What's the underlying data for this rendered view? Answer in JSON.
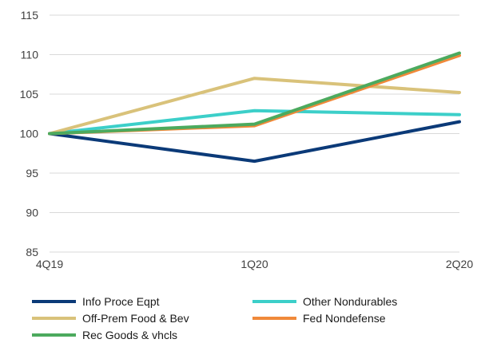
{
  "chart_data": {
    "type": "line",
    "title": "",
    "xlabel": "",
    "ylabel": "",
    "categories": [
      "4Q19",
      "1Q20",
      "2Q20"
    ],
    "ylim": [
      85,
      115
    ],
    "yticks": [
      85,
      90,
      95,
      100,
      105,
      110,
      115
    ],
    "grid": "horizontal",
    "legend_position": "bottom",
    "series": [
      {
        "name": "Info Proce Eqpt",
        "values": [
          100,
          96.5,
          101.5
        ],
        "color": "#0b3a78"
      },
      {
        "name": "Other Nondurables",
        "values": [
          100,
          102.9,
          102.4
        ],
        "color": "#3ccfc9"
      },
      {
        "name": "Off-Prem Food & Bev",
        "values": [
          100,
          107.0,
          105.2
        ],
        "color": "#d9c27a"
      },
      {
        "name": "Fed Nondefense",
        "values": [
          100,
          101.0,
          109.9
        ],
        "color": "#f0893a"
      },
      {
        "name": "Rec Goods & vhcls",
        "values": [
          100,
          101.2,
          110.2
        ],
        "color": "#4caa5e"
      }
    ]
  }
}
